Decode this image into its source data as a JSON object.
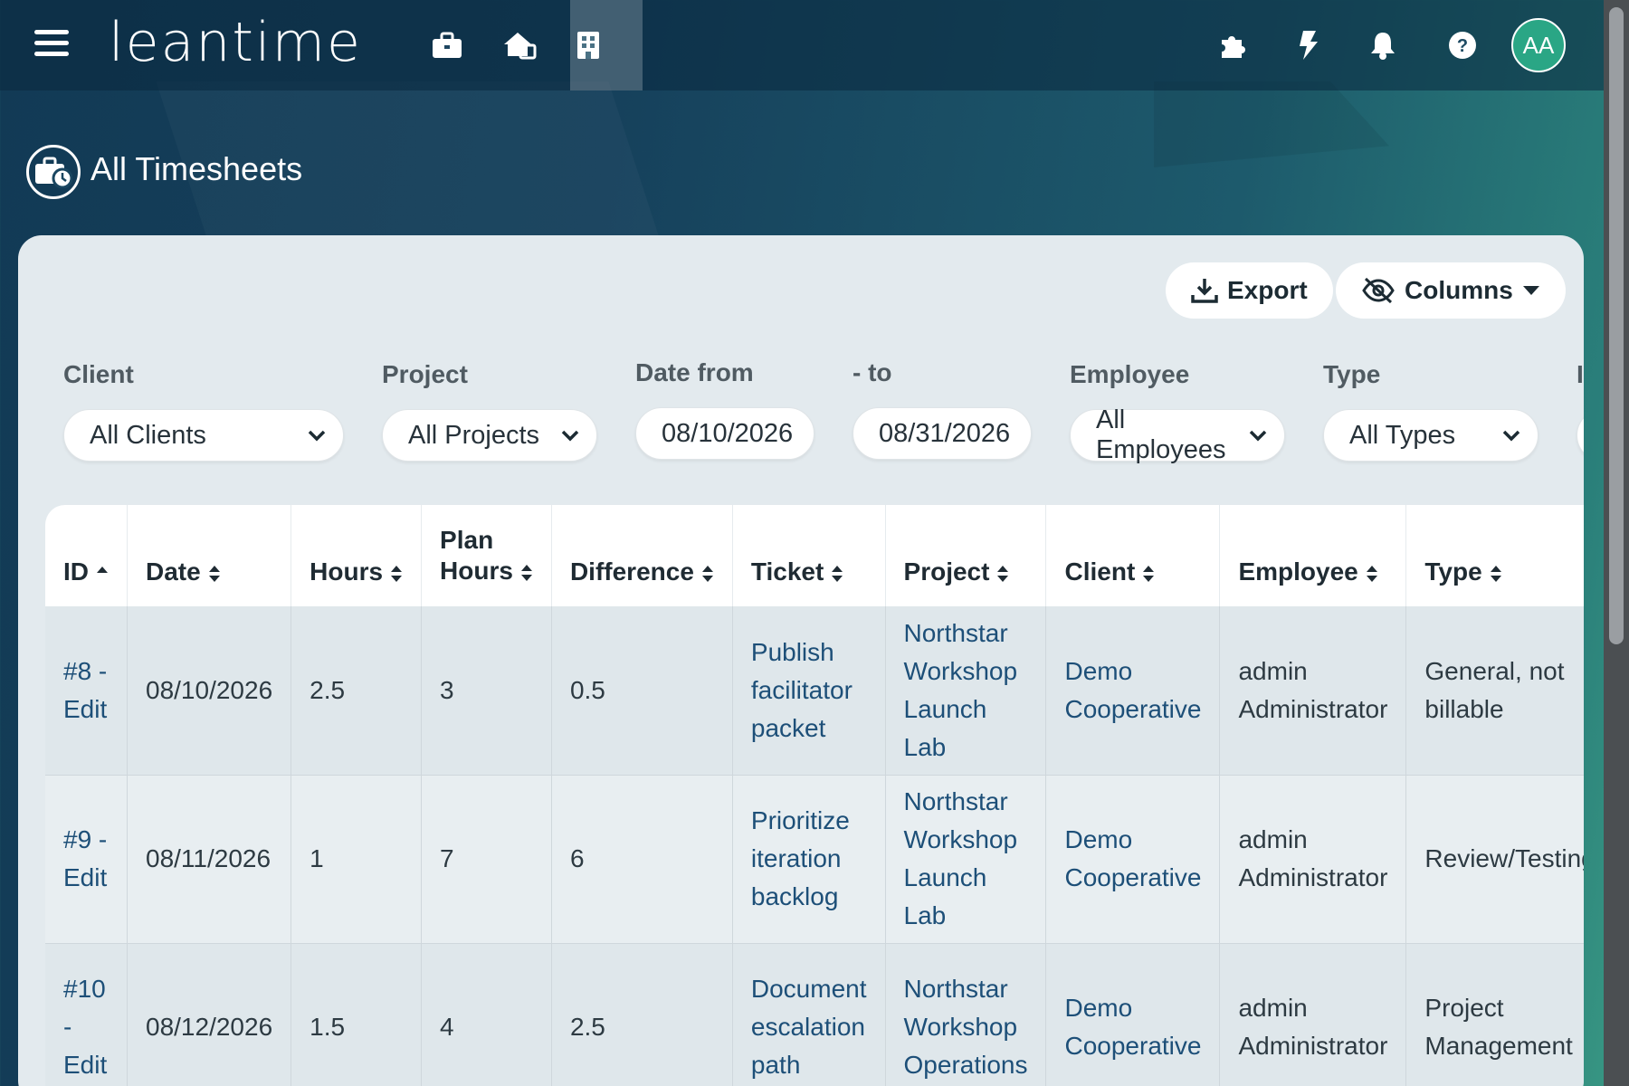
{
  "app": {
    "logo": "leantime"
  },
  "header": {
    "icons": [
      "briefcase-icon",
      "home-icon",
      "building-icon",
      "puzzle-icon",
      "bolt-icon",
      "bell-icon",
      "help-icon"
    ],
    "avatar_initials": "AA"
  },
  "page": {
    "title": "All Timesheets"
  },
  "toolbar": {
    "export_label": "Export",
    "columns_label": "Columns"
  },
  "filters": {
    "client": {
      "label": "Client",
      "value": "All Clients"
    },
    "project": {
      "label": "Project",
      "value": "All Projects"
    },
    "date_from": {
      "label": "Date from",
      "value": "08/10/2026"
    },
    "date_to": {
      "label": "- to",
      "value": "08/31/2026"
    },
    "employee": {
      "label": "Employee",
      "value": "All Employees"
    },
    "type": {
      "label": "Type",
      "value": "All Types"
    },
    "invoiced_label_cut": "I"
  },
  "table": {
    "headers": {
      "id": "ID",
      "date": "Date",
      "hours": "Hours",
      "plan_hours_1": "Plan",
      "plan_hours_2": "Hours",
      "difference": "Difference",
      "ticket": "Ticket",
      "project": "Project",
      "client": "Client",
      "employee": "Employee",
      "type": "Type"
    },
    "rows": [
      {
        "id_1": "#8 -",
        "id_2": "Edit",
        "date": "08/10/2026",
        "hours": "2.5",
        "plan": "3",
        "diff": "0.5",
        "ticket_1": "Publish",
        "ticket_2": "facilitator",
        "ticket_3": "packet",
        "project_1": "Northstar",
        "project_2": "Workshop",
        "project_3": "Launch",
        "project_4": "Lab",
        "client_1": "Demo",
        "client_2": "Cooperative",
        "employee_1": "admin",
        "employee_2": "Administrator",
        "type_1": "General, not",
        "type_2": "billable"
      },
      {
        "id_1": "#9 -",
        "id_2": "Edit",
        "date": "08/11/2026",
        "hours": "1",
        "plan": "7",
        "diff": "6",
        "ticket_1": "Prioritize",
        "ticket_2": "iteration",
        "ticket_3": "backlog",
        "project_1": "Northstar",
        "project_2": "Workshop",
        "project_3": "Launch",
        "project_4": "Lab",
        "client_1": "Demo",
        "client_2": "Cooperative",
        "employee_1": "admin",
        "employee_2": "Administrator",
        "type_1": "Review/Testing",
        "type_2": ""
      },
      {
        "id_1": "#10",
        "id_2": "-",
        "id_3": "Edit",
        "date": "08/12/2026",
        "hours": "1.5",
        "plan": "4",
        "diff": "2.5",
        "ticket_1": "Document",
        "ticket_2": "escalation",
        "ticket_3": "path",
        "project_1": "Northstar",
        "project_2": "Workshop",
        "project_3": "Operations",
        "client_1": "Demo",
        "client_2": "Cooperative",
        "employee_1": "admin",
        "employee_2": "Administrator",
        "type_1": "Project",
        "type_2": "Management"
      }
    ]
  },
  "colors": {
    "link": "#1d4f78",
    "avatar_bg": "#2aa685",
    "header_bg": "#123a55"
  }
}
